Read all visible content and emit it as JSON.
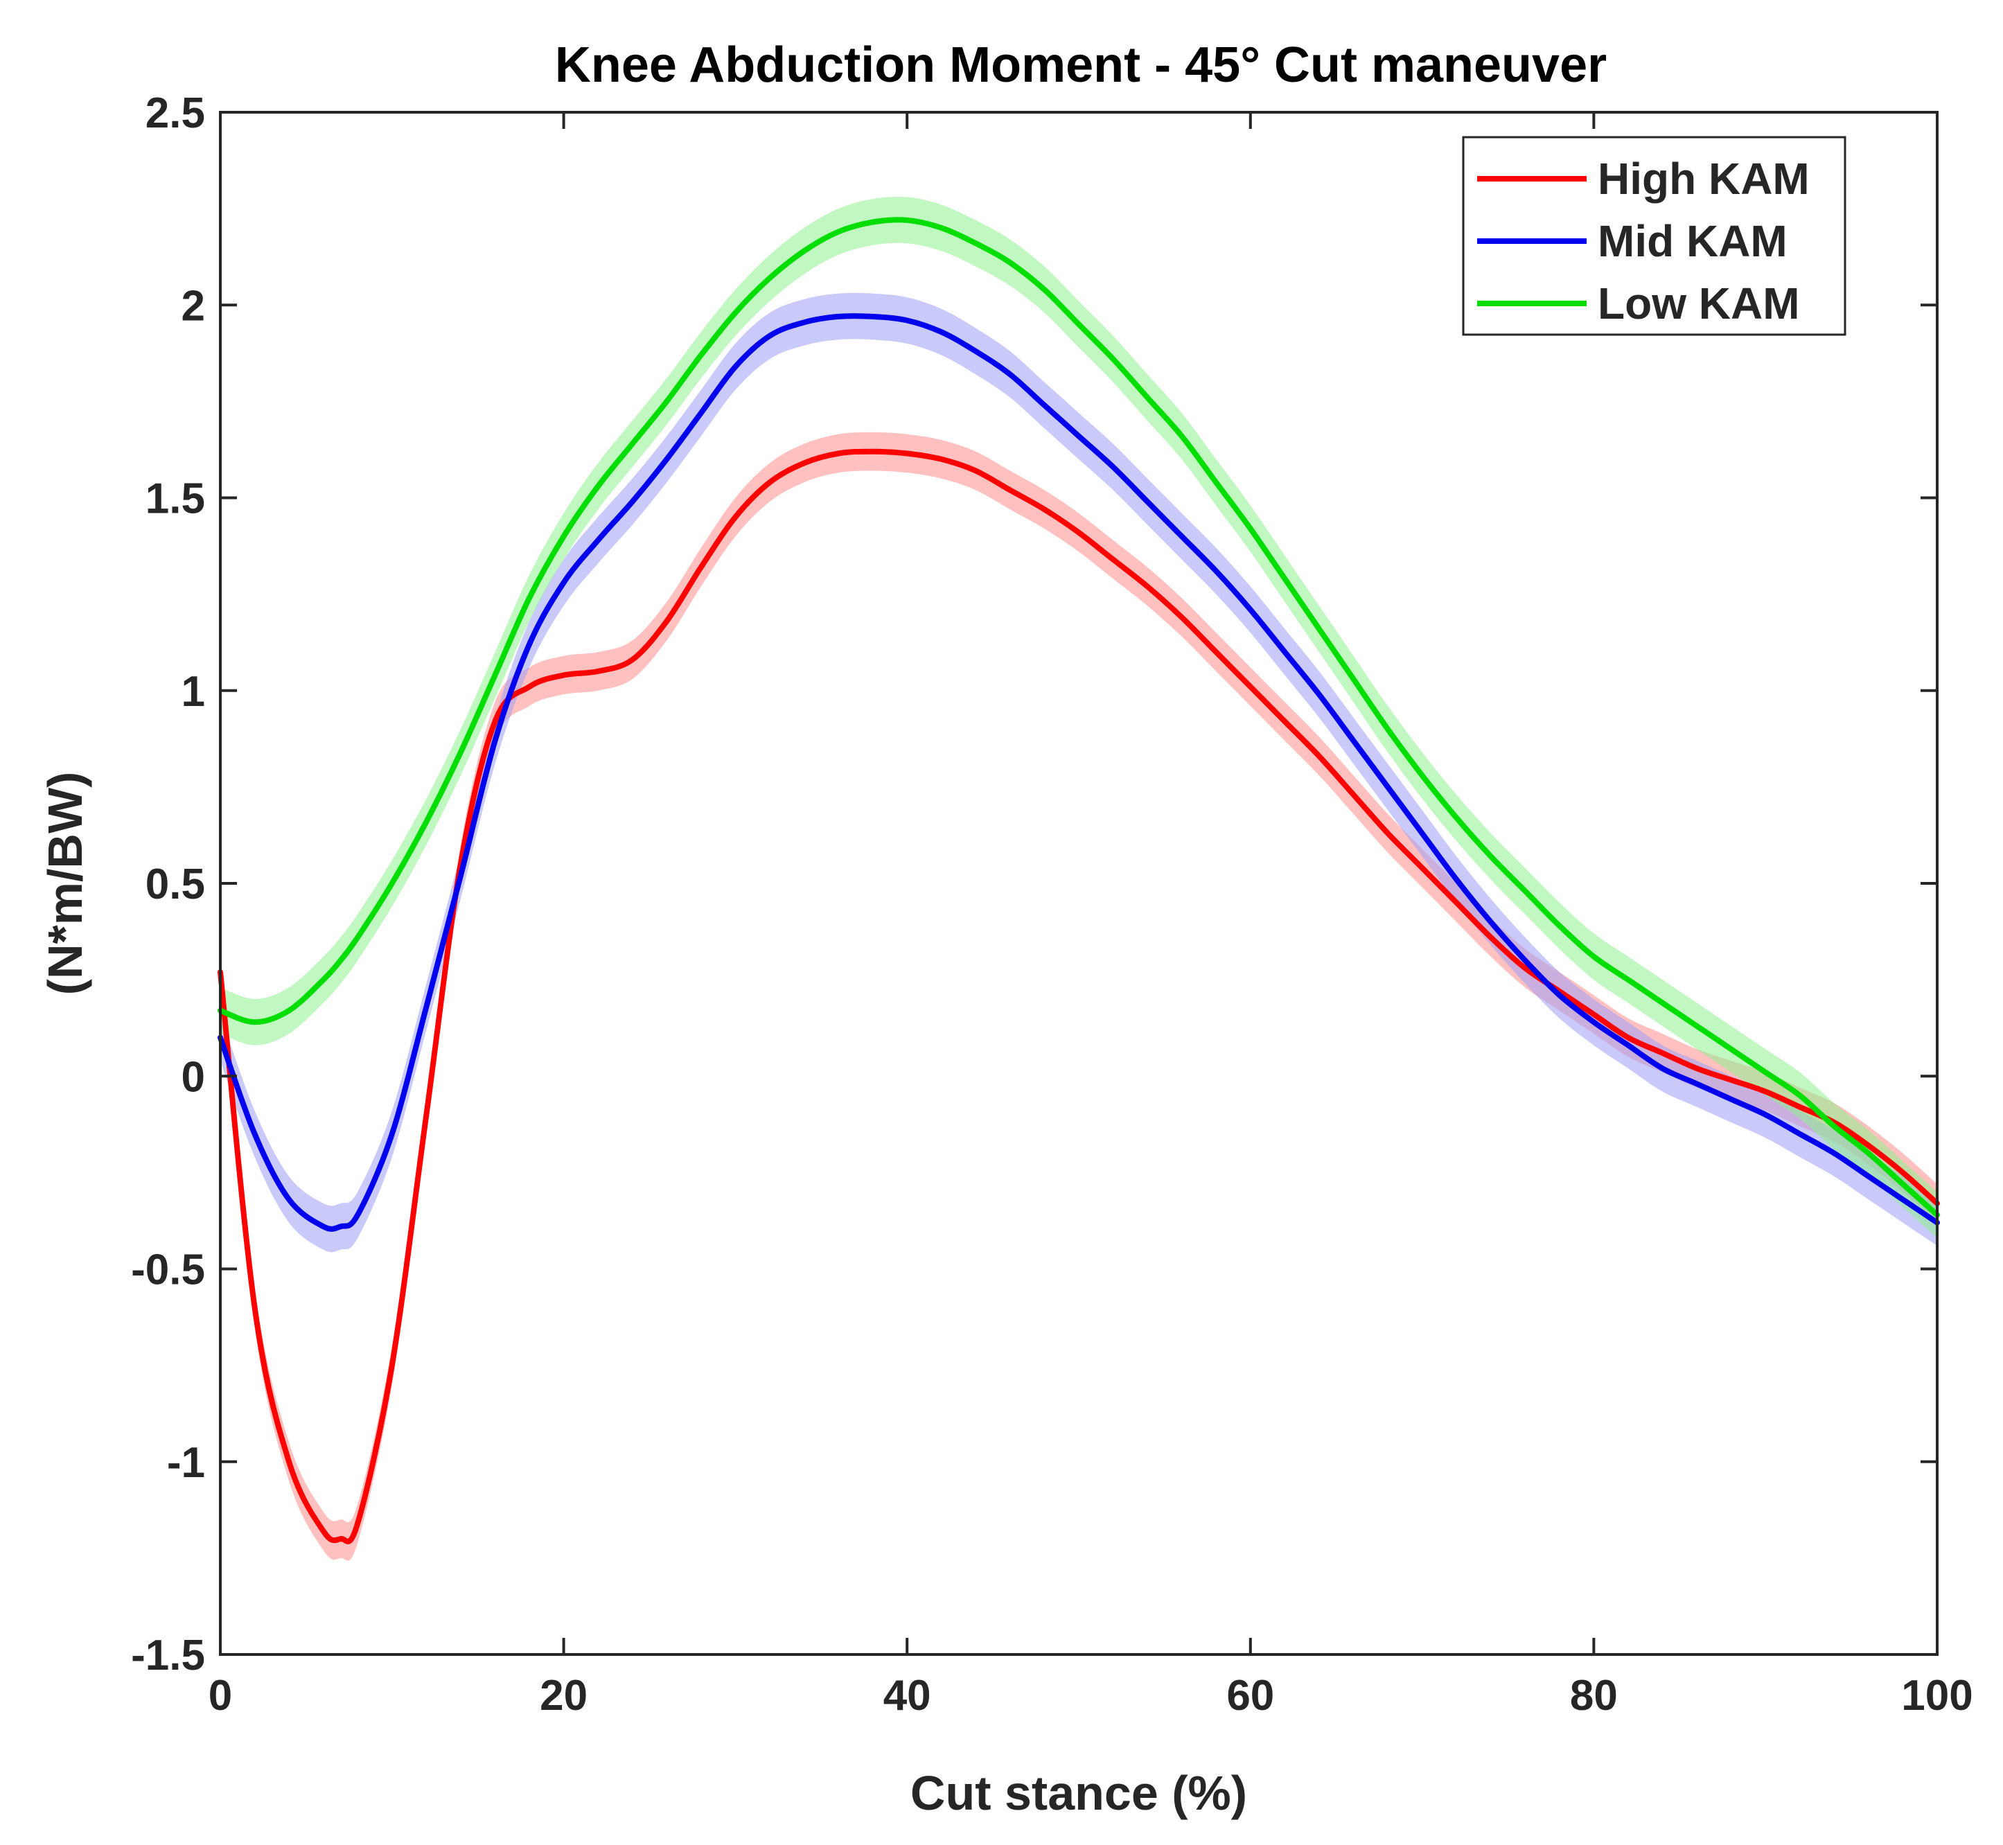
{
  "chart_data": {
    "type": "line",
    "title": "Knee Abduction Moment - 45° Cut maneuver",
    "xlabel": "Cut stance (%)",
    "ylabel": "(N*m/BW)",
    "xlim": [
      0,
      100
    ],
    "ylim": [
      -1.5,
      2.5
    ],
    "xticks": [
      0,
      20,
      40,
      60,
      80,
      100
    ],
    "yticks": [
      -1.5,
      -1,
      -0.5,
      0,
      0.5,
      1,
      1.5,
      2,
      2.5
    ],
    "xtick_labels": [
      "0",
      "20",
      "40",
      "60",
      "80",
      "100"
    ],
    "ytick_labels": [
      "-1.5",
      "-1",
      "-0.5",
      "0",
      "0.5",
      "1",
      "1.5",
      "2",
      "2.5"
    ],
    "grid": false,
    "legend_position": "top-right",
    "x": [
      0,
      2,
      4,
      6,
      7,
      8,
      10,
      12,
      14,
      16,
      18,
      20,
      22,
      24,
      26,
      28,
      30,
      32,
      34,
      36,
      38,
      40,
      42,
      44,
      46,
      48,
      50,
      52,
      54,
      56,
      58,
      60,
      62,
      64,
      66,
      68,
      70,
      72,
      74,
      76,
      78,
      80,
      82,
      84,
      86,
      88,
      90,
      92,
      94,
      96,
      98,
      100
    ],
    "series": [
      {
        "name": "High KAM",
        "color": "#ff0000",
        "band_color": "#ff8c8c",
        "band": 0.05,
        "values": [
          0.27,
          -0.6,
          -1.0,
          -1.18,
          -1.2,
          -1.16,
          -0.75,
          -0.1,
          0.55,
          0.92,
          1.01,
          1.04,
          1.05,
          1.08,
          1.18,
          1.32,
          1.45,
          1.54,
          1.59,
          1.615,
          1.62,
          1.615,
          1.6,
          1.57,
          1.52,
          1.47,
          1.41,
          1.34,
          1.27,
          1.19,
          1.1,
          1.01,
          0.92,
          0.83,
          0.73,
          0.63,
          0.54,
          0.45,
          0.36,
          0.28,
          0.22,
          0.16,
          0.1,
          0.06,
          0.02,
          -0.01,
          -0.04,
          -0.08,
          -0.12,
          -0.18,
          -0.25,
          -0.33
        ]
      },
      {
        "name": "Mid KAM",
        "color": "#0000ee",
        "band_color": "#9e9ef5",
        "band": 0.06,
        "values": [
          0.1,
          -0.15,
          -0.32,
          -0.39,
          -0.39,
          -0.36,
          -0.15,
          0.18,
          0.52,
          0.87,
          1.12,
          1.28,
          1.39,
          1.49,
          1.6,
          1.72,
          1.84,
          1.92,
          1.955,
          1.97,
          1.97,
          1.96,
          1.93,
          1.88,
          1.82,
          1.74,
          1.66,
          1.58,
          1.49,
          1.4,
          1.31,
          1.21,
          1.1,
          0.99,
          0.87,
          0.75,
          0.63,
          0.51,
          0.4,
          0.3,
          0.21,
          0.14,
          0.08,
          0.02,
          -0.02,
          -0.06,
          -0.1,
          -0.15,
          -0.2,
          -0.26,
          -0.32,
          -0.38
        ]
      },
      {
        "name": "Low KAM",
        "color": "#00dd00",
        "band_color": "#8ef08e",
        "band": 0.06,
        "values": [
          0.17,
          0.14,
          0.17,
          0.25,
          0.3,
          0.36,
          0.5,
          0.66,
          0.84,
          1.04,
          1.24,
          1.4,
          1.53,
          1.64,
          1.75,
          1.87,
          1.98,
          2.07,
          2.14,
          2.19,
          2.215,
          2.22,
          2.2,
          2.16,
          2.11,
          2.04,
          1.95,
          1.86,
          1.76,
          1.66,
          1.54,
          1.42,
          1.29,
          1.16,
          1.03,
          0.9,
          0.78,
          0.67,
          0.57,
          0.48,
          0.39,
          0.31,
          0.25,
          0.19,
          0.13,
          0.07,
          0.01,
          -0.05,
          -0.13,
          -0.2,
          -0.28,
          -0.36
        ]
      }
    ]
  }
}
